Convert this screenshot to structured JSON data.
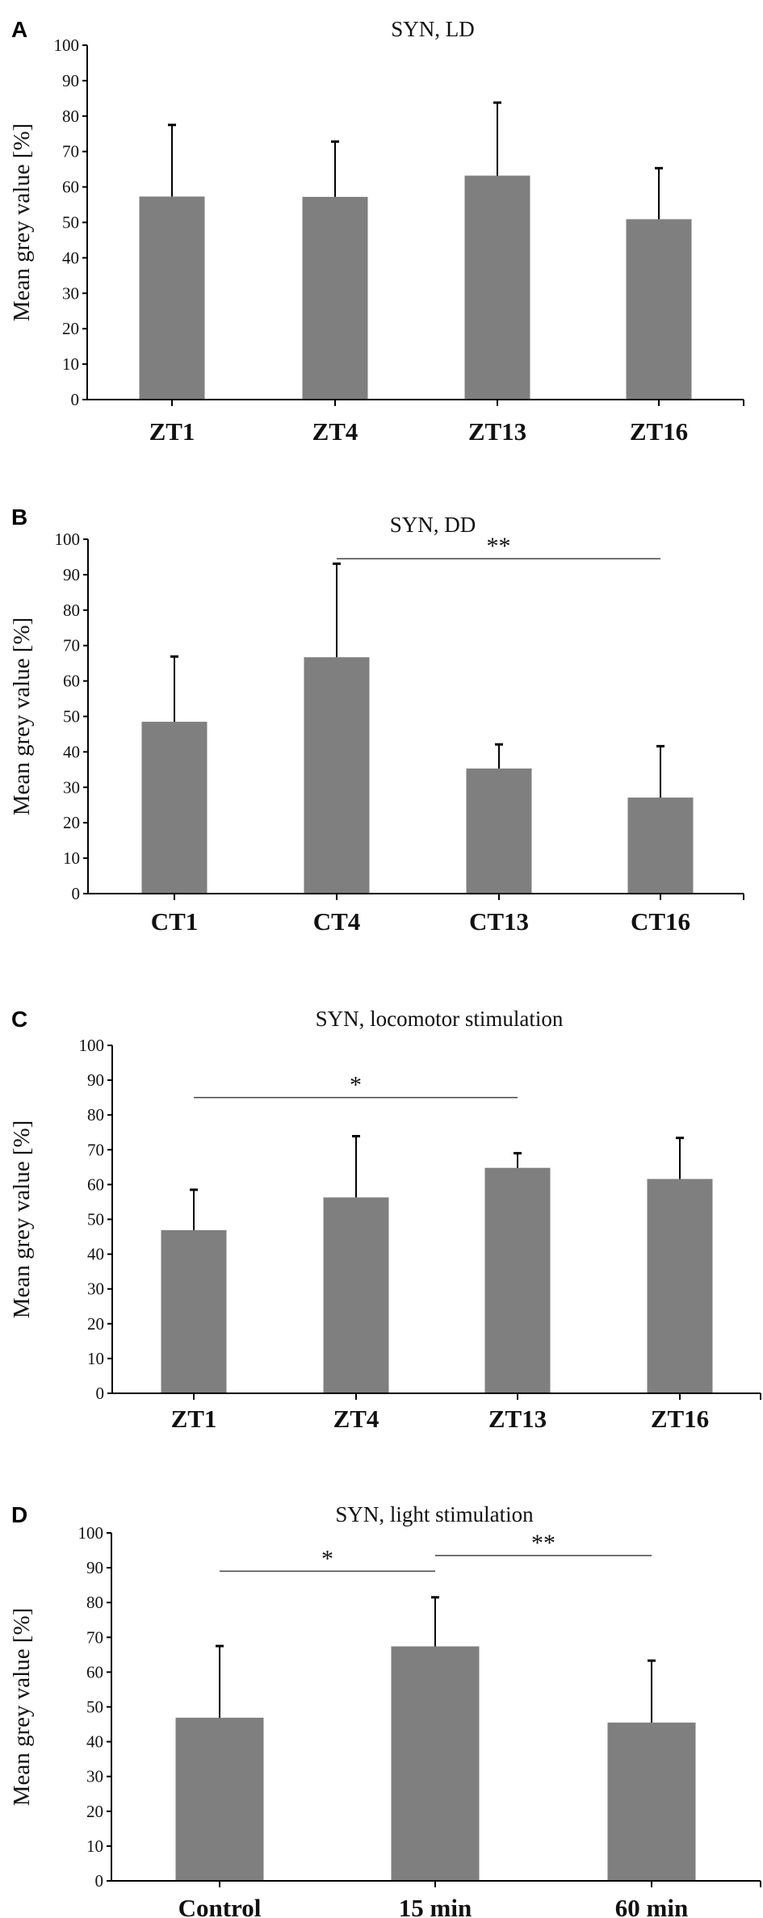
{
  "chart_data": [
    {
      "panel": "A",
      "type": "bar",
      "title": "SYN, LD",
      "xlabel": "",
      "ylabel": "Mean grey value [%]",
      "ylim": [
        0,
        100
      ],
      "yticks": [
        "0",
        "10",
        "20",
        "30",
        "40",
        "50",
        "60",
        "70",
        "80",
        "90",
        "100"
      ],
      "categories": [
        "ZT1",
        "ZT4",
        "ZT13",
        "ZT16"
      ],
      "values": [
        57.3,
        57.2,
        63.2,
        50.9
      ],
      "error_upper": [
        77.5,
        72.8,
        83.8,
        65.3
      ],
      "significance": [],
      "bar_color": "#7f7f7f"
    },
    {
      "panel": "B",
      "type": "bar",
      "title": "SYN, DD",
      "xlabel": "",
      "ylabel": "Mean grey value [%]",
      "ylim": [
        0,
        100
      ],
      "yticks": [
        "0",
        "10",
        "20",
        "30",
        "40",
        "50",
        "60",
        "70",
        "80",
        "90",
        "100"
      ],
      "categories": [
        "CT1",
        "CT4",
        "CT13",
        "CT16"
      ],
      "values": [
        48.5,
        66.7,
        35.3,
        27.1
      ],
      "error_upper": [
        66.9,
        93.1,
        42.1,
        41.6
      ],
      "significance": [
        {
          "from": 1,
          "to": 3,
          "level": 94.5,
          "label": "**"
        }
      ],
      "bar_color": "#7f7f7f"
    },
    {
      "panel": "C",
      "type": "bar",
      "title": "SYN, locomotor stimulation",
      "xlabel": "",
      "ylabel": "Mean grey value [%]",
      "ylim": [
        0,
        100
      ],
      "yticks": [
        "0",
        "10",
        "20",
        "30",
        "40",
        "50",
        "60",
        "70",
        "80",
        "90",
        "100"
      ],
      "categories": [
        "ZT1",
        "ZT4",
        "ZT13",
        "ZT16"
      ],
      "values": [
        46.9,
        56.3,
        64.8,
        61.6
      ],
      "error_upper": [
        58.5,
        73.9,
        69.0,
        73.4
      ],
      "significance": [
        {
          "from": 0,
          "to": 2,
          "level": 85,
          "label": "*"
        }
      ],
      "bar_color": "#7f7f7f"
    },
    {
      "panel": "D",
      "type": "bar",
      "title": "SYN, light stimulation",
      "xlabel": "",
      "ylabel": "Mean grey value [%]",
      "ylim": [
        0,
        100
      ],
      "yticks": [
        "0",
        "10",
        "20",
        "30",
        "40",
        "50",
        "60",
        "70",
        "80",
        "90",
        "100"
      ],
      "categories": [
        "Control",
        "15 min",
        "60 min"
      ],
      "values": [
        46.9,
        67.4,
        45.5
      ],
      "error_upper": [
        67.5,
        81.5,
        63.3
      ],
      "significance": [
        {
          "from": 0,
          "to": 1,
          "level": 89,
          "label": "*"
        },
        {
          "from": 1,
          "to": 2,
          "level": 93.5,
          "label": "**"
        }
      ],
      "bar_color": "#7f7f7f"
    }
  ]
}
